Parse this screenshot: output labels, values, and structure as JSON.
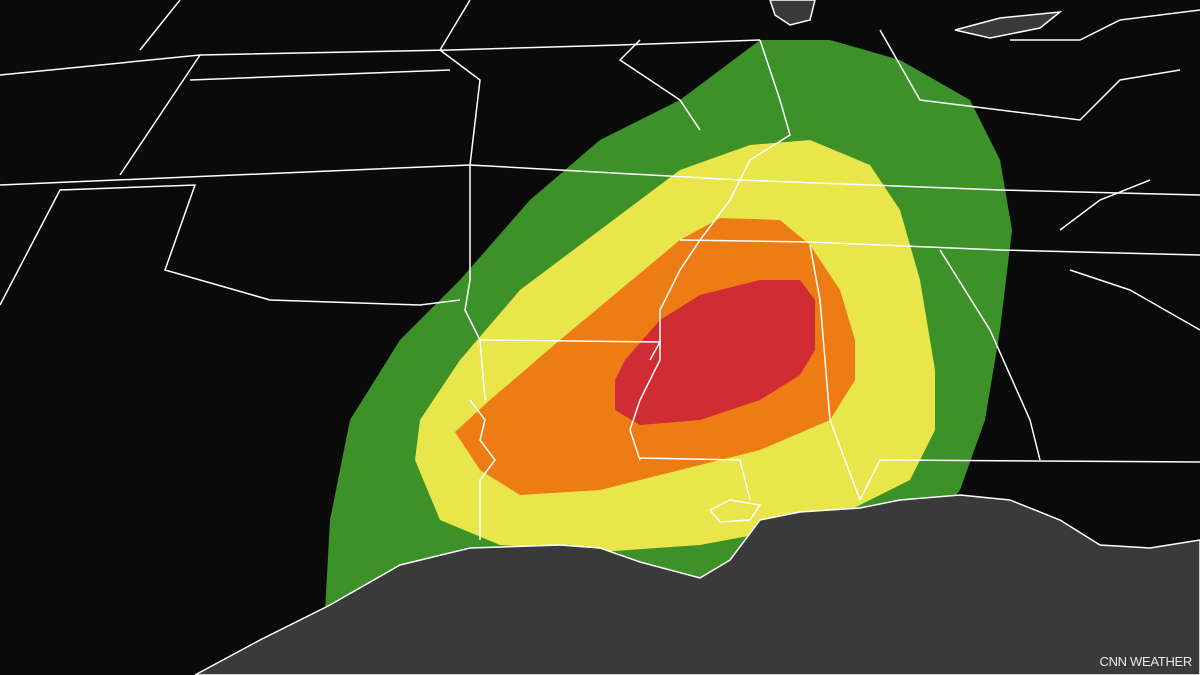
{
  "map": {
    "credit": "CNN WEATHER",
    "colors": {
      "land": "#0a0a0a",
      "water": "#3a3a3a",
      "borders": "#ffffff",
      "risk_level_1": "#3c9228",
      "risk_level_2": "#e8e64a",
      "risk_level_3": "#ee7c15",
      "risk_level_4": "#d02c33"
    }
  }
}
